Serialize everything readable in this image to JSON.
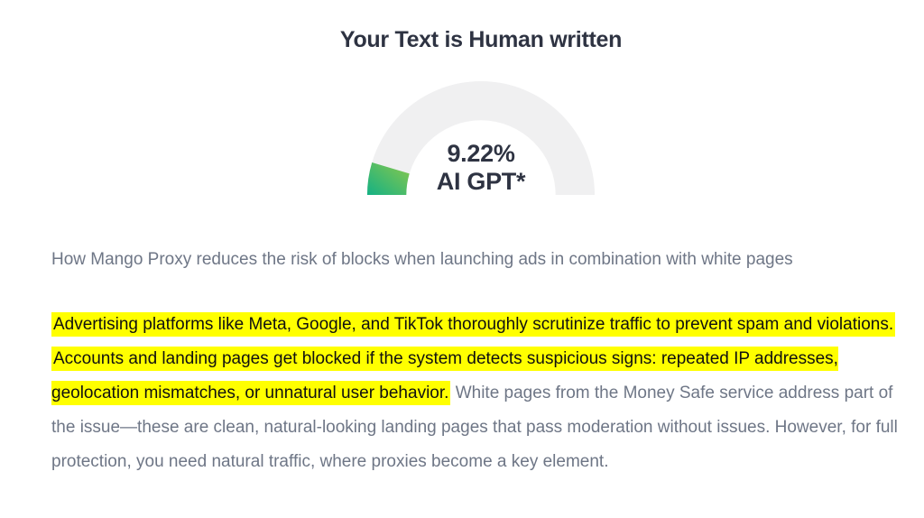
{
  "page": {
    "title": "Your Text is Human written"
  },
  "gauge": {
    "percent": 9.22,
    "value_label": "9.22%",
    "unit_label": "AI GPT*",
    "track_color": "#f0f0f1",
    "fill_gradient": [
      "#14b184",
      "#8bc84b"
    ]
  },
  "article": {
    "paragraph1": "How Mango Proxy reduces the risk of blocks when launching ads in combination with white pages",
    "paragraph2": {
      "highlight1": "Advertising platforms like Meta, Google, and TikTok thoroughly scrutinize traffic to prevent spam and violations.",
      "separator": " ",
      "highlight2": "Accounts and landing pages get blocked if the system detects suspicious signs: repeated IP addresses, geolocation mismatches, or unnatural user behavior.",
      "rest": " White pages from the Money Safe service address part of the issue—these are clean, natural-looking landing pages that pass moderation without issues. However, for full protection, you need natural traffic, where proxies become a key element."
    }
  },
  "colors": {
    "heading": "#2e3342",
    "body_text": "#6e7686",
    "highlight": "#ffff00",
    "gauge_track": "#f0f0f1",
    "gauge_fill_start": "#14b184",
    "gauge_fill_end": "#8bc84b"
  }
}
